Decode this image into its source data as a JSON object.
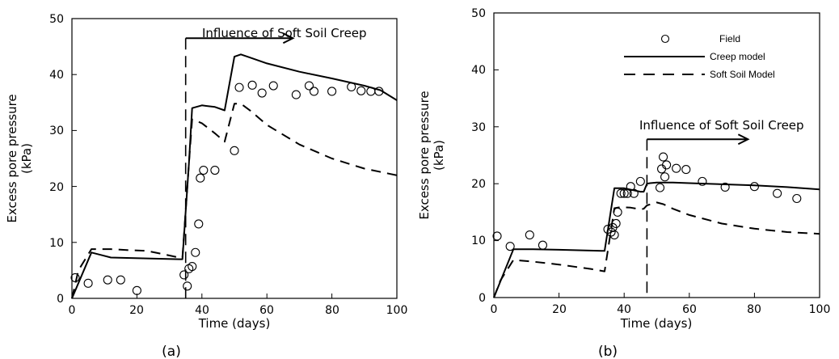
{
  "chart_data": [
    {
      "type": "line",
      "panel_label": "(a)",
      "xlabel": "Time (days)",
      "ylabel": "Excess pore pressure (kPa)",
      "ylabel_lines": [
        "Excess pore pressure",
        "(kPa)"
      ],
      "xlim": [
        0,
        100
      ],
      "ylim": [
        0,
        50
      ],
      "xticks": [
        "0",
        "20",
        "40",
        "60",
        "80",
        "100"
      ],
      "yticks": [
        "0",
        "10",
        "20",
        "30",
        "40",
        "50"
      ],
      "grid": false,
      "annotation": {
        "text": "Influence of Soft Soil Creep",
        "vline_x": 35,
        "arrow_y": 46.5,
        "arrow_x_end": 68
      },
      "series": [
        {
          "style": "solid",
          "x": [
            0,
            6,
            12,
            33,
            34,
            36,
            37,
            40,
            44,
            47,
            50,
            52,
            55,
            60,
            70,
            80,
            90,
            95,
            100
          ],
          "y": [
            0,
            8.2,
            7.3,
            7.0,
            7.0,
            24,
            34.0,
            34.5,
            34.2,
            33.6,
            43.2,
            43.6,
            43.0,
            42.0,
            40.5,
            39.3,
            38.0,
            37.2,
            35.4
          ]
        },
        {
          "style": "dashed",
          "x": [
            0,
            2,
            6,
            12,
            18,
            23,
            28,
            33,
            34,
            36,
            37,
            40,
            44,
            47,
            50,
            52,
            55,
            60,
            70,
            80,
            90,
            100
          ],
          "y": [
            0,
            5,
            8.8,
            8.8,
            8.6,
            8.5,
            7.9,
            7.3,
            7.3,
            24,
            32.0,
            31.3,
            29.5,
            28.0,
            34.8,
            34.8,
            33.5,
            31.0,
            27.5,
            25.0,
            23.2,
            22.0
          ]
        },
        {
          "style": "markers",
          "x": [
            1,
            5,
            11,
            15,
            20,
            34.5,
            35.5,
            36,
            37,
            38,
            39,
            39.5,
            40.5,
            44,
            50,
            51.5,
            55.5,
            58.5,
            62,
            69,
            73,
            74.5,
            80,
            86,
            89,
            92,
            94.5
          ],
          "y": [
            3.7,
            2.7,
            3.3,
            3.3,
            1.4,
            4.2,
            2.2,
            5.3,
            5.7,
            8.2,
            13.3,
            21.5,
            22.9,
            22.9,
            26.4,
            37.7,
            38.1,
            36.7,
            38.0,
            36.4,
            38.0,
            37.0,
            37.0,
            37.8,
            37.1,
            37.0,
            37.0
          ]
        }
      ]
    },
    {
      "type": "line",
      "panel_label": "(b)",
      "xlabel": "Time (days)",
      "ylabel": "Excess pore pressure (kPa)",
      "ylabel_lines": [
        "Excess pore pressure",
        "(kPa)"
      ],
      "xlim": [
        0,
        100
      ],
      "ylim": [
        0,
        50
      ],
      "xticks": [
        "0",
        "20",
        "40",
        "60",
        "80",
        "100"
      ],
      "yticks": [
        "0",
        "10",
        "20",
        "30",
        "40",
        "50"
      ],
      "grid": false,
      "legend_position": "top-right",
      "legend": [
        {
          "label": "Field",
          "style": "markers"
        },
        {
          "label": "Creep model",
          "style": "solid"
        },
        {
          "label": "Soft Soil Model",
          "style": "dashed"
        }
      ],
      "annotation": {
        "text": "Influence of Soft Soil Creep",
        "vline_x": 47,
        "arrow_y": 27.8,
        "arrow_x_end": 78
      },
      "series": [
        {
          "name": "Creep model",
          "style": "solid",
          "x": [
            0,
            6,
            12,
            20,
            33,
            34,
            37,
            40,
            45,
            46,
            47,
            48,
            50,
            55,
            60,
            70,
            80,
            90,
            100
          ],
          "y": [
            0,
            8.5,
            8.5,
            8.4,
            8.2,
            8.2,
            19.2,
            19.2,
            18.6,
            18.6,
            20.0,
            20.1,
            20.2,
            20.2,
            20.1,
            19.9,
            19.7,
            19.4,
            19.0
          ]
        },
        {
          "name": "Soft Soil Model",
          "style": "dashed",
          "x": [
            0,
            2,
            6,
            12,
            20,
            30,
            34,
            36,
            37,
            39,
            42,
            45,
            46,
            47,
            50,
            52,
            55,
            60,
            70,
            80,
            90,
            100
          ],
          "y": [
            0,
            3,
            6.6,
            6.3,
            5.8,
            5.0,
            4.6,
            12,
            15.7,
            15.9,
            15.8,
            15.5,
            15.6,
            16.2,
            16.7,
            16.4,
            15.6,
            14.5,
            13.0,
            12.1,
            11.5,
            11.2
          ]
        },
        {
          "name": "Field",
          "style": "markers",
          "x": [
            1,
            5,
            11,
            15,
            35,
            36,
            36.5,
            37,
            37.5,
            38,
            39,
            40,
            41,
            42,
            43,
            45,
            51,
            51.5,
            52,
            52.5,
            53,
            56,
            59,
            64,
            71,
            80,
            87,
            93
          ],
          "y": [
            10.8,
            9.0,
            11.0,
            9.2,
            12.0,
            11.5,
            12.3,
            11.0,
            13.0,
            15.0,
            18.3,
            18.3,
            18.3,
            19.5,
            18.3,
            20.4,
            19.3,
            22.6,
            24.7,
            21.2,
            23.3,
            22.7,
            22.5,
            20.4,
            19.4,
            19.5,
            18.3,
            17.4
          ]
        }
      ]
    }
  ]
}
